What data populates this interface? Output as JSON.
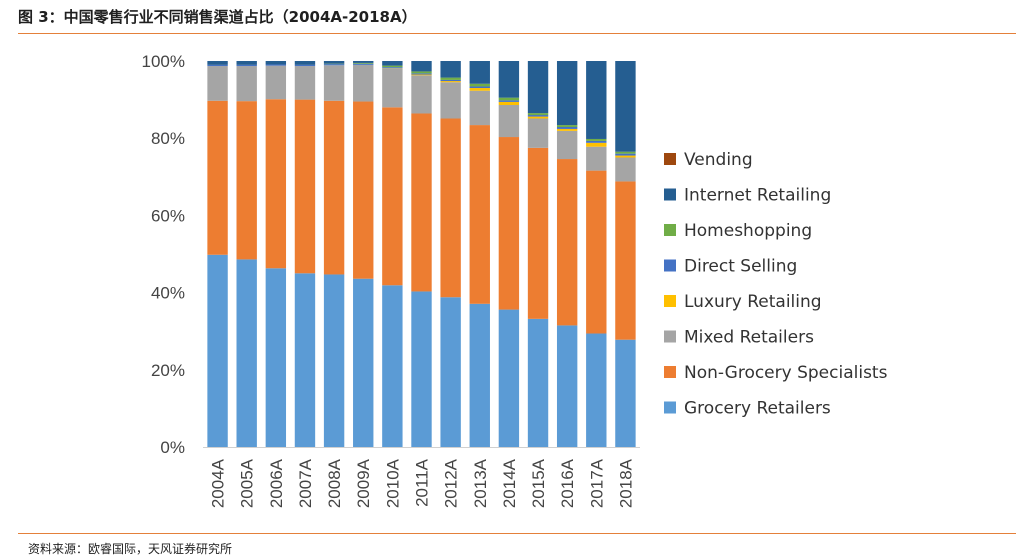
{
  "header": {
    "title": "图 3：中国零售行业不同销售渠道占比（2004A-2018A）"
  },
  "footer": {
    "source": "资料来源：欧睿国际，天风证券研究所"
  },
  "colors": {
    "rule": "#e4803a"
  },
  "chart_data": {
    "type": "bar",
    "stacked": true,
    "percent": true,
    "title": "",
    "xlabel": "",
    "ylabel": "",
    "ylim": [
      0,
      100
    ],
    "yticks": [
      0,
      20,
      40,
      60,
      80,
      100
    ],
    "ytick_labels": [
      "0%",
      "20%",
      "40%",
      "60%",
      "80%",
      "100%"
    ],
    "legend_position": "right",
    "grid": false,
    "categories": [
      "2004A",
      "2005A",
      "2006A",
      "2007A",
      "2008A",
      "2009A",
      "2010A",
      "2011A",
      "2012A",
      "2013A",
      "2014A",
      "2015A",
      "2016A",
      "2017A",
      "2018A"
    ],
    "series": [
      {
        "name": "Grocery Retailers",
        "color": "#5b9bd5",
        "values": [
          49.8,
          48.6,
          46.3,
          45.0,
          44.7,
          43.6,
          41.9,
          40.3,
          38.8,
          37.1,
          35.6,
          33.2,
          31.5,
          29.4,
          27.8
        ]
      },
      {
        "name": "Non-Grocery Specialists",
        "color": "#ed7d31",
        "values": [
          39.9,
          41.0,
          43.8,
          45.0,
          45.0,
          45.9,
          46.1,
          46.1,
          46.3,
          46.3,
          44.7,
          44.3,
          43.1,
          42.2,
          41.0
        ]
      },
      {
        "name": "Mixed Retailers",
        "color": "#a5a5a5",
        "values": [
          9.0,
          9.1,
          8.7,
          8.7,
          9.2,
          9.5,
          10.0,
          9.9,
          9.4,
          8.9,
          8.3,
          7.6,
          7.3,
          6.2,
          6.2
        ]
      },
      {
        "name": "Luxury Retailing",
        "color": "#ffc000",
        "values": [
          0.0,
          0.0,
          0.0,
          0.0,
          0.0,
          0.0,
          0.1,
          0.2,
          0.3,
          0.7,
          0.8,
          0.5,
          0.5,
          1.0,
          0.5
        ]
      },
      {
        "name": "Direct Selling",
        "color": "#4472c4",
        "values": [
          0.3,
          0.3,
          0.3,
          0.3,
          0.3,
          0.3,
          0.3,
          0.3,
          0.3,
          0.4,
          0.4,
          0.4,
          0.5,
          0.5,
          0.5
        ]
      },
      {
        "name": "Homeshopping",
        "color": "#70ad47",
        "values": [
          0.0,
          0.0,
          0.0,
          0.0,
          0.1,
          0.2,
          0.4,
          0.5,
          0.6,
          0.7,
          0.7,
          0.5,
          0.5,
          0.5,
          0.5
        ]
      },
      {
        "name": "Internet Retailing",
        "color": "#255e91",
        "values": [
          1.0,
          1.0,
          0.9,
          1.0,
          0.7,
          0.5,
          1.2,
          2.7,
          4.3,
          5.9,
          9.5,
          13.5,
          16.6,
          20.2,
          23.5
        ]
      },
      {
        "name": "Vending",
        "color": "#9e480e",
        "values": [
          0.0,
          0.0,
          0.0,
          0.0,
          0.0,
          0.0,
          0.0,
          0.0,
          0.0,
          0.0,
          0.0,
          0.0,
          0.0,
          0.0,
          0.0
        ]
      }
    ]
  }
}
